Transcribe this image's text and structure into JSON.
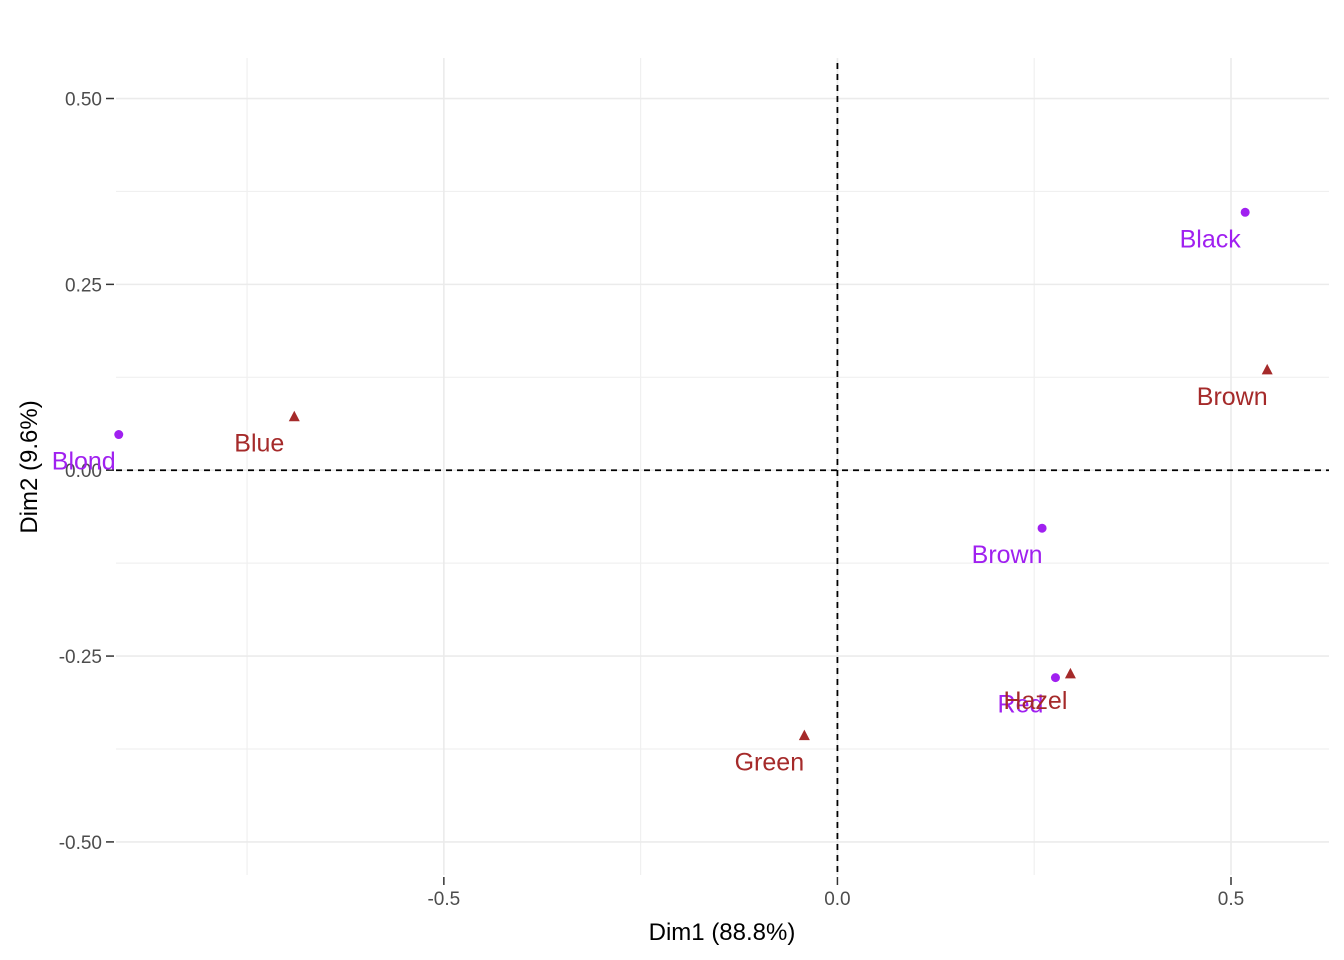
{
  "chart_data": {
    "type": "scatter",
    "xlabel": "Dim1 (88.8%)",
    "ylabel": "Dim2 (9.6%)",
    "xlim": [
      -0.9165,
      0.6245
    ],
    "ylim": [
      -0.5445,
      0.5545
    ],
    "x_ticks": [
      {
        "value": -0.5,
        "label": "-0.5"
      },
      {
        "value": 0.0,
        "label": "0.0"
      },
      {
        "value": 0.5,
        "label": "0.5"
      }
    ],
    "y_ticks": [
      {
        "value": 0.5,
        "label": "0.50"
      },
      {
        "value": 0.25,
        "label": "0.25"
      },
      {
        "value": 0.0,
        "label": "0.00"
      },
      {
        "value": -0.25,
        "label": "-0.25"
      },
      {
        "value": -0.5,
        "label": "-0.50"
      }
    ],
    "grid": true,
    "reference_lines": {
      "x": 0,
      "y": 0,
      "style": "dashed"
    },
    "series": [
      {
        "shape": "circle",
        "color": "#A020F0",
        "points": [
          {
            "label": "Black",
            "x": 0.518,
            "y": 0.347
          },
          {
            "label": "Blond",
            "x": -0.913,
            "y": 0.048
          },
          {
            "label": "Brown",
            "x": 0.26,
            "y": -0.078
          },
          {
            "label": "Red",
            "x": 0.277,
            "y": -0.279
          }
        ]
      },
      {
        "shape": "triangle",
        "color": "#A52A2A",
        "points": [
          {
            "label": "Brown",
            "x": 0.546,
            "y": 0.135
          },
          {
            "label": "Blue",
            "x": -0.69,
            "y": 0.072
          },
          {
            "label": "Hazel",
            "x": 0.296,
            "y": -0.274
          },
          {
            "label": "Green",
            "x": -0.042,
            "y": -0.357
          }
        ]
      }
    ]
  }
}
